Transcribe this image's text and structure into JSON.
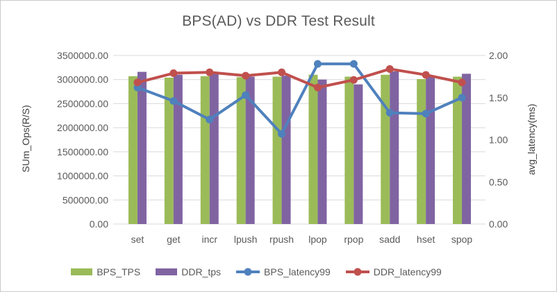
{
  "window": {
    "background": "#ffffff",
    "border_color": "#c9c9c9"
  },
  "chart": {
    "title": "BPS(AD) vs DDR Test Result",
    "title_color": "#595959",
    "gridline_color": "#d9d9d9",
    "left_axis": {
      "title": "SUm_Ops(R/S)",
      "tick_labels": [
        "3500000.00",
        "3000000.00",
        "2500000.00",
        "2000000.00",
        "1500000.00",
        "1000000.00",
        "500000.00",
        "0.00"
      ]
    },
    "right_axis": {
      "title": "avg_latency(ms)",
      "tick_labels": [
        "2.00",
        "1.50",
        "1.00",
        "0.50",
        "0.00"
      ]
    }
  },
  "chart_data": {
    "type": "bar",
    "subtype": "combo bar+line, dual axis",
    "title": "BPS(AD) vs DDR Test Result",
    "categories": [
      "set",
      "get",
      "incr",
      "lpush",
      "rpush",
      "lpop",
      "rpop",
      "sadd",
      "hset",
      "spop"
    ],
    "series": [
      {
        "name": "BPS_TPS",
        "type": "bar",
        "axis": "left",
        "color": "#9bbb59",
        "values": [
          3070000,
          3040000,
          3070000,
          3050000,
          3060000,
          3100000,
          3060000,
          3100000,
          3010000,
          3060000
        ]
      },
      {
        "name": "DDR_tps",
        "type": "bar",
        "axis": "left",
        "color": "#8064a2",
        "values": [
          3160000,
          3100000,
          3120000,
          3060000,
          3080000,
          3000000,
          2900000,
          3170000,
          3080000,
          3120000
        ]
      },
      {
        "name": "BPS_latency99",
        "type": "line",
        "axis": "right",
        "color": "#4f81bd",
        "values": [
          1.62,
          1.46,
          1.24,
          1.53,
          1.07,
          1.9,
          1.9,
          1.32,
          1.31,
          1.5
        ]
      },
      {
        "name": "DDR_latency99",
        "type": "line",
        "axis": "right",
        "color": "#c0504d",
        "values": [
          1.68,
          1.79,
          1.8,
          1.76,
          1.8,
          1.62,
          1.71,
          1.84,
          1.77,
          1.68
        ]
      }
    ],
    "xlabel": "",
    "ylabel_left": "SUm_Ops(R/S)",
    "ylabel_right": "avg_latency(ms)",
    "ylim_left": [
      0,
      3500000
    ],
    "ylim_right": [
      0,
      2
    ],
    "grid": true,
    "legend_position": "bottom"
  },
  "legend": {
    "items": [
      {
        "label": "BPS_TPS",
        "marker": "bar",
        "color": "#9bbb59"
      },
      {
        "label": "DDR_tps",
        "marker": "bar",
        "color": "#8064a2"
      },
      {
        "label": "BPS_latency99",
        "marker": "line-dot",
        "color": "#4f81bd"
      },
      {
        "label": "DDR_latency99",
        "marker": "line-dot",
        "color": "#c0504d"
      }
    ]
  }
}
